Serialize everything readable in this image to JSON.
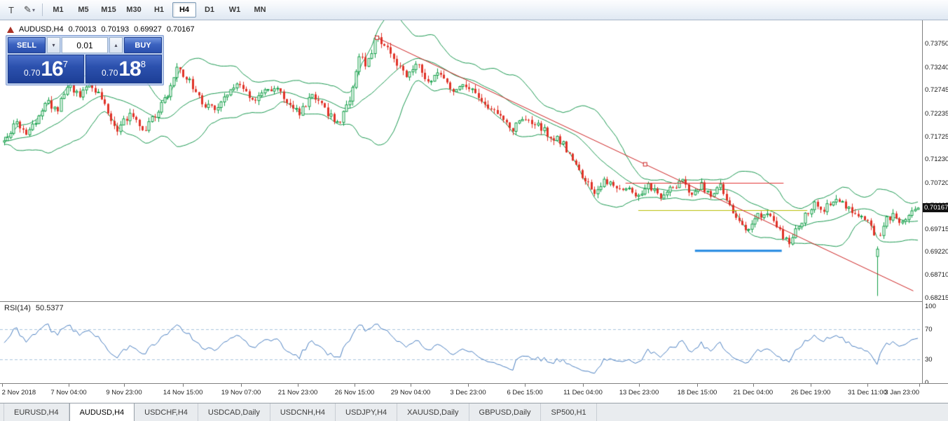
{
  "toolbar": {
    "tools": [
      {
        "name": "text-tool",
        "glyph": "T"
      },
      {
        "name": "draw-tool",
        "glyph": "✎"
      }
    ],
    "icons": {
      "caret_down": "▾",
      "caret_up": "▴"
    },
    "timeframes": [
      {
        "label": "M1",
        "active": false
      },
      {
        "label": "M5",
        "active": false
      },
      {
        "label": "M15",
        "active": false
      },
      {
        "label": "M30",
        "active": false
      },
      {
        "label": "H1",
        "active": false
      },
      {
        "label": "H4",
        "active": true
      },
      {
        "label": "D1",
        "active": false
      },
      {
        "label": "W1",
        "active": false
      },
      {
        "label": "MN",
        "active": false
      }
    ]
  },
  "chart": {
    "title": {
      "symbol_period": "AUDUSD,H4",
      "open": "0.70013",
      "high": "0.70193",
      "low": "0.69927",
      "close": "0.70167"
    },
    "trade_panel": {
      "sell_label": "SELL",
      "buy_label": "BUY",
      "volume": "0.01",
      "sell_price": {
        "base": "0.70",
        "big": "16",
        "sup": "7"
      },
      "buy_price": {
        "base": "0.70",
        "big": "18",
        "sup": "8"
      }
    },
    "price_axis": {
      "ticks": [
        "0.73750",
        "0.73240",
        "0.72745",
        "0.72235",
        "0.71725",
        "0.71230",
        "0.70720",
        "0.70225",
        "0.69715",
        "0.69220",
        "0.68710",
        "0.68215"
      ],
      "current_price_label": "0.70167"
    },
    "time_axis": [
      {
        "pos": 0.002,
        "label": "2 Nov 2018",
        "align": "left"
      },
      {
        "pos": 0.0745,
        "label": "7 Nov 04:00"
      },
      {
        "pos": 0.1345,
        "label": "9 Nov 23:00"
      },
      {
        "pos": 0.1984,
        "label": "14 Nov 15:00"
      },
      {
        "pos": 0.2614,
        "label": "19 Nov 07:00"
      },
      {
        "pos": 0.323,
        "label": "21 Nov 23:00"
      },
      {
        "pos": 0.3845,
        "label": "26 Nov 15:00"
      },
      {
        "pos": 0.4453,
        "label": "29 Nov 04:00"
      },
      {
        "pos": 0.5076,
        "label": "3 Dec 23:00"
      },
      {
        "pos": 0.5692,
        "label": "6 Dec 15:00"
      },
      {
        "pos": 0.6322,
        "label": "11 Dec 04:00"
      },
      {
        "pos": 0.693,
        "label": "13 Dec 23:00"
      },
      {
        "pos": 0.7561,
        "label": "18 Dec 15:00"
      },
      {
        "pos": 0.8168,
        "label": "21 Dec 04:00"
      },
      {
        "pos": 0.8792,
        "label": "26 Dec 19:00"
      },
      {
        "pos": 0.9407,
        "label": "31 Dec 11:00"
      },
      {
        "pos": 0.997,
        "label": "3 Jan 23:00",
        "align": "right"
      }
    ],
    "rsi": {
      "name": "RSI(14)",
      "value": "50.5377",
      "axis": [
        "100",
        "70",
        "30",
        "0"
      ]
    }
  },
  "chart_data": {
    "type": "candlestick",
    "symbol": "AUDUSD",
    "timeframe": "H4",
    "ohlc_current": {
      "open": 0.70013,
      "high": 0.70193,
      "low": 0.69927,
      "close": 0.70167
    },
    "bid": 0.70167,
    "ask": 0.70188,
    "y_ticks": [
      0.7375,
      0.7324,
      0.72745,
      0.72235,
      0.71725,
      0.7123,
      0.7072,
      0.70225,
      0.69715,
      0.6922,
      0.6871,
      0.68215
    ],
    "price_range": {
      "top": 0.7426,
      "bottom": 0.68135
    },
    "x_range": {
      "start": "2 Nov 2018",
      "end": "4 Jan 2019"
    },
    "num_candles": 292,
    "price_path": [
      [
        0.0,
        0.7162
      ],
      [
        0.012,
        0.7205
      ],
      [
        0.025,
        0.7172
      ],
      [
        0.045,
        0.7248
      ],
      [
        0.058,
        0.7232
      ],
      [
        0.07,
        0.7288
      ],
      [
        0.082,
        0.7262
      ],
      [
        0.095,
        0.729
      ],
      [
        0.11,
        0.7238
      ],
      [
        0.122,
        0.7182
      ],
      [
        0.138,
        0.7225
      ],
      [
        0.152,
        0.718
      ],
      [
        0.165,
        0.7222
      ],
      [
        0.178,
        0.7262
      ],
      [
        0.19,
        0.7322
      ],
      [
        0.202,
        0.7295
      ],
      [
        0.215,
        0.725
      ],
      [
        0.228,
        0.7232
      ],
      [
        0.243,
        0.726
      ],
      [
        0.258,
        0.729
      ],
      [
        0.27,
        0.7248
      ],
      [
        0.283,
        0.7268
      ],
      [
        0.297,
        0.7282
      ],
      [
        0.31,
        0.725
      ],
      [
        0.323,
        0.7225
      ],
      [
        0.337,
        0.726
      ],
      [
        0.35,
        0.7232
      ],
      [
        0.365,
        0.72
      ],
      [
        0.378,
        0.7252
      ],
      [
        0.388,
        0.7352
      ],
      [
        0.397,
        0.7328
      ],
      [
        0.407,
        0.7392
      ],
      [
        0.417,
        0.7368
      ],
      [
        0.427,
        0.734
      ],
      [
        0.44,
        0.7298
      ],
      [
        0.452,
        0.7328
      ],
      [
        0.465,
        0.7292
      ],
      [
        0.477,
        0.731
      ],
      [
        0.49,
        0.7272
      ],
      [
        0.503,
        0.729
      ],
      [
        0.517,
        0.7262
      ],
      [
        0.53,
        0.7238
      ],
      [
        0.543,
        0.722
      ],
      [
        0.556,
        0.7188
      ],
      [
        0.568,
        0.7215
      ],
      [
        0.582,
        0.7202
      ],
      [
        0.595,
        0.7178
      ],
      [
        0.61,
        0.7162
      ],
      [
        0.622,
        0.712
      ],
      [
        0.634,
        0.7082
      ],
      [
        0.646,
        0.7048
      ],
      [
        0.658,
        0.7078
      ],
      [
        0.67,
        0.7052
      ],
      [
        0.682,
        0.7068
      ],
      [
        0.694,
        0.7042
      ],
      [
        0.706,
        0.7066
      ],
      [
        0.718,
        0.704
      ],
      [
        0.73,
        0.706
      ],
      [
        0.742,
        0.7076
      ],
      [
        0.753,
        0.7046
      ],
      [
        0.763,
        0.7066
      ],
      [
        0.773,
        0.7042
      ],
      [
        0.783,
        0.7072
      ],
      [
        0.793,
        0.7024
      ],
      [
        0.803,
        0.699
      ],
      [
        0.813,
        0.6964
      ],
      [
        0.823,
        0.6996
      ],
      [
        0.833,
        0.7006
      ],
      [
        0.843,
        0.698
      ],
      [
        0.848,
        0.6968
      ],
      [
        0.858,
        0.6938
      ],
      [
        0.868,
        0.6975
      ],
      [
        0.878,
        0.7006
      ],
      [
        0.888,
        0.7028
      ],
      [
        0.898,
        0.7014
      ],
      [
        0.908,
        0.7038
      ],
      [
        0.918,
        0.7026
      ],
      [
        0.928,
        0.7006
      ],
      [
        0.938,
        0.7
      ],
      [
        0.948,
        0.6988
      ],
      [
        0.952,
        0.696
      ],
      [
        0.958,
        0.6948
      ],
      [
        0.965,
        0.699
      ],
      [
        0.973,
        0.7002
      ],
      [
        0.981,
        0.698
      ],
      [
        0.99,
        0.7
      ],
      [
        1.0,
        0.7017
      ]
    ],
    "flash_crash": {
      "pos": 0.954,
      "low": 0.6825
    },
    "indicators": {
      "bollinger_bands": {
        "period": 20,
        "deviation": 2,
        "color": "#1a9850"
      },
      "rsi": {
        "period": 14,
        "current": 50.5377,
        "levels": [
          70,
          30
        ],
        "color": "#4a7fc0",
        "level_color": "#a9c4dd"
      }
    },
    "overlays": {
      "trendline": {
        "x1": 0.408,
        "p1": 0.7388,
        "x2": 0.995,
        "p2": 0.6836,
        "color": "#cc2222"
      },
      "hlines": [
        {
          "price": 0.7072,
          "x1": 0.68,
          "x2": 0.853,
          "color": "#e03030",
          "width": 1
        },
        {
          "price": 0.7012,
          "x1": 0.694,
          "x2": 0.879,
          "color": "#b8bc00",
          "width": 1
        },
        {
          "price": 0.6924,
          "x1": 0.756,
          "x2": 0.851,
          "color": "#1e86e0",
          "width": 3
        }
      ],
      "current_price": 0.70167
    },
    "colors": {
      "bull": "#0f9d45",
      "bear": "#e03328",
      "bull_fill": "#ffffff",
      "background": "#ffffff"
    }
  },
  "tabs": [
    {
      "label": "EURUSD,H4",
      "active": false
    },
    {
      "label": "AUDUSD,H4",
      "active": true
    },
    {
      "label": "USDCHF,H4",
      "active": false
    },
    {
      "label": "USDCAD,Daily",
      "active": false
    },
    {
      "label": "USDCNH,H4",
      "active": false
    },
    {
      "label": "USDJPY,H4",
      "active": false
    },
    {
      "label": "XAUUSD,Daily",
      "active": false
    },
    {
      "label": "GBPUSD,Daily",
      "active": false
    },
    {
      "label": "SP500,H1",
      "active": false
    }
  ]
}
